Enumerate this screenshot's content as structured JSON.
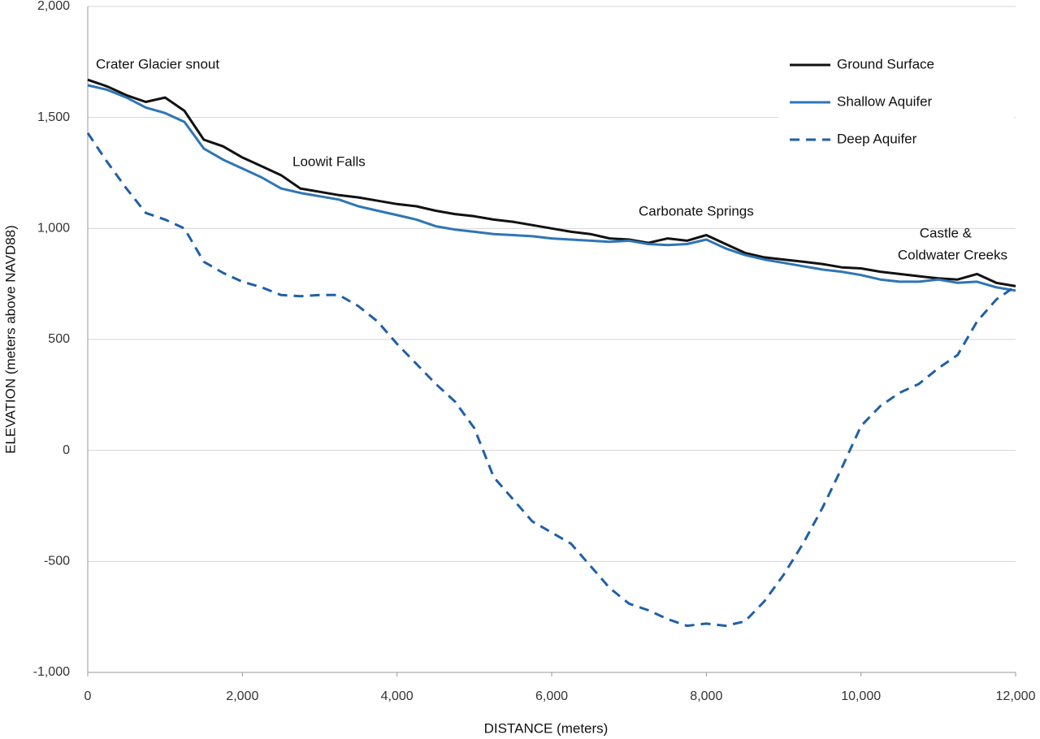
{
  "chart_data": {
    "type": "line",
    "xlabel": "DISTANCE (meters)",
    "ylabel": "ELEVATION (meters above NAVD88)",
    "annotations": [
      "Crater Glacier snout",
      "Loowit Falls",
      "Carbonate Springs",
      "Castle &",
      "Coldwater Creeks"
    ],
    "x": [
      0,
      250,
      500,
      750,
      1000,
      1250,
      1500,
      1750,
      2000,
      2250,
      2500,
      2750,
      3000,
      3250,
      3500,
      3750,
      4000,
      4250,
      4500,
      4750,
      5000,
      5250,
      5500,
      5750,
      6000,
      6250,
      6500,
      6750,
      7000,
      7250,
      7500,
      7750,
      8000,
      8250,
      8500,
      8750,
      9000,
      9250,
      9500,
      9750,
      10000,
      10250,
      10500,
      10750,
      11000,
      11250,
      11500,
      11750,
      12000
    ],
    "series": [
      {
        "name": "Ground Surface",
        "color": "#111111",
        "dash": false,
        "values": [
          1670,
          1640,
          1600,
          1570,
          1590,
          1530,
          1400,
          1370,
          1320,
          1280,
          1240,
          1180,
          1165,
          1150,
          1140,
          1125,
          1110,
          1100,
          1080,
          1065,
          1055,
          1040,
          1030,
          1015,
          1000,
          985,
          975,
          955,
          950,
          935,
          955,
          945,
          970,
          930,
          890,
          870,
          860,
          850,
          840,
          825,
          820,
          805,
          795,
          785,
          775,
          770,
          795,
          755,
          740
        ]
      },
      {
        "name": "Shallow Aquifer",
        "color": "#2e75b6",
        "dash": false,
        "values": [
          1645,
          1625,
          1590,
          1545,
          1520,
          1480,
          1360,
          1310,
          1270,
          1230,
          1180,
          1160,
          1145,
          1130,
          1100,
          1080,
          1060,
          1040,
          1010,
          995,
          985,
          975,
          970,
          965,
          955,
          950,
          945,
          940,
          945,
          930,
          925,
          930,
          950,
          910,
          880,
          860,
          845,
          830,
          815,
          805,
          790,
          770,
          760,
          760,
          770,
          755,
          760,
          735,
          720
        ]
      },
      {
        "name": "Deep Aquifer",
        "color": "#1f5fa8",
        "dash": true,
        "values": [
          1430,
          1300,
          1180,
          1070,
          1040,
          1000,
          850,
          800,
          760,
          735,
          700,
          695,
          700,
          700,
          650,
          580,
          480,
          390,
          300,
          220,
          100,
          -120,
          -220,
          -320,
          -370,
          -420,
          -520,
          -620,
          -690,
          -720,
          -760,
          -790,
          -780,
          -790,
          -770,
          -680,
          -560,
          -420,
          -260,
          -80,
          110,
          200,
          260,
          300,
          370,
          430,
          580,
          680,
          740
        ]
      }
    ],
    "xlim": [
      0,
      12000
    ],
    "xticks": [
      0,
      {
        "value": 2000,
        "label": "2,000"
      },
      {
        "value": 4000,
        "label": "4,000"
      },
      {
        "value": 6000,
        "label": "6,000"
      },
      {
        "value": 8000,
        "label": "8,000"
      },
      {
        "value": 10000,
        "label": "10,000"
      },
      {
        "value": 12000,
        "label": "12,000"
      }
    ],
    "ylim": [
      -1000,
      2000
    ],
    "yticks": [
      {
        "value": -1000,
        "label": "-1,000"
      },
      -500,
      0,
      500,
      {
        "value": 1000,
        "label": "1,000"
      },
      {
        "value": 1500,
        "label": "1,500"
      },
      {
        "value": 2000,
        "label": "2,000"
      }
    ],
    "grid": true,
    "legend": "upper right"
  }
}
